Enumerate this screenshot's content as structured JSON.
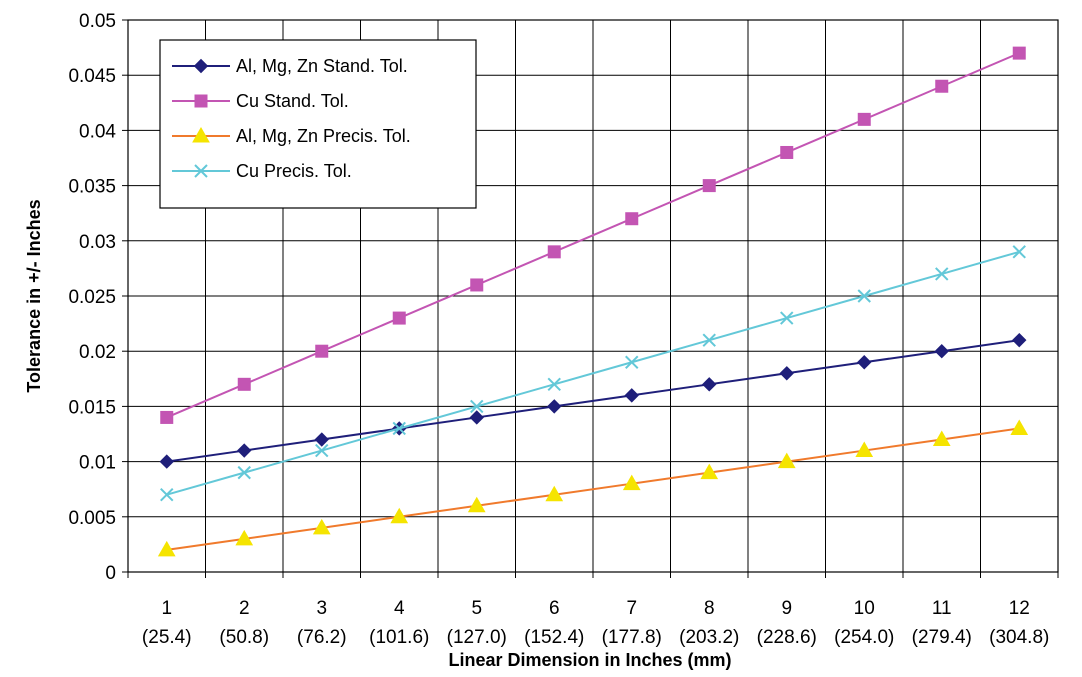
{
  "chart_data": {
    "type": "line",
    "xlabel": "Linear Dimension in Inches (mm)",
    "ylabel": "Tolerance in +/- Inches",
    "title": "",
    "categories": [
      "1",
      "2",
      "3",
      "4",
      "5",
      "6",
      "7",
      "8",
      "9",
      "10",
      "11",
      "12"
    ],
    "category_sublabels": [
      "(25.4)",
      "(50.8)",
      "(76.2)",
      "(101.6)",
      "(127.0)",
      "(152.4)",
      "(177.8)",
      "(203.2)",
      "(228.6)",
      "(254.0)",
      "(279.4)",
      "(304.8)"
    ],
    "ylim": [
      0,
      0.05
    ],
    "y_ticks": [
      "0",
      "0.005",
      "0.01",
      "0.015",
      "0.02",
      "0.025",
      "0.03",
      "0.035",
      "0.04",
      "0.045",
      "0.05"
    ],
    "grid": true,
    "legend_position": "top-left",
    "series": [
      {
        "name": "Al, Mg, Zn Stand. Tol.",
        "color": "#1f1f7a",
        "marker": "diamond",
        "values": [
          0.01,
          0.011,
          0.012,
          0.013,
          0.014,
          0.015,
          0.016,
          0.017,
          0.018,
          0.019,
          0.02,
          0.021
        ]
      },
      {
        "name": "Cu Stand. Tol.",
        "color": "#c355b3",
        "marker": "square",
        "values": [
          0.014,
          0.017,
          0.02,
          0.023,
          0.026,
          0.029,
          0.032,
          0.035,
          0.038,
          0.041,
          0.044,
          0.047
        ]
      },
      {
        "name": "Al, Mg, Zn Precis. Tol.",
        "color": "#f07a2c",
        "marker": "triangle",
        "marker_color": "#f5e400",
        "values": [
          0.002,
          0.003,
          0.004,
          0.005,
          0.006,
          0.007,
          0.008,
          0.009,
          0.01,
          0.011,
          0.012,
          0.013
        ]
      },
      {
        "name": "Cu Precis. Tol.",
        "color": "#63c8d8",
        "marker": "x",
        "values": [
          0.007,
          0.009,
          0.011,
          0.013,
          0.015,
          0.017,
          0.019,
          0.021,
          0.023,
          0.025,
          0.027,
          0.029
        ]
      }
    ]
  }
}
